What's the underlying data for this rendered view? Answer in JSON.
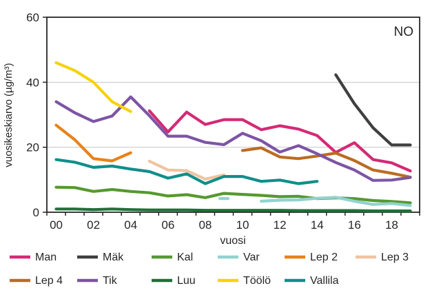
{
  "chart_data": {
    "type": "line",
    "title": "NO",
    "xlabel": "vuosi",
    "ylabel": "vuosikeskiarvo (µg/m³)",
    "x_categories": [
      "00",
      "01",
      "02",
      "03",
      "04",
      "05",
      "06",
      "07",
      "08",
      "09",
      "10",
      "11",
      "12",
      "13",
      "14",
      "15",
      "16",
      "17",
      "18",
      "19"
    ],
    "x_axis_tick_labels": [
      "00",
      "02",
      "04",
      "06",
      "08",
      "10",
      "12",
      "14",
      "16",
      "18"
    ],
    "ylim": [
      0,
      60
    ],
    "yticks": [
      0,
      20,
      40,
      60
    ],
    "gridlines_y": [
      20,
      40
    ],
    "grid": "horizontal-only",
    "legend_position": "bottom",
    "axis_color": "#262626",
    "grid_color": "#c6c6c6",
    "background_color": "#ffffff",
    "series": [
      {
        "name": "Man",
        "color": "#d42a75",
        "values": [
          null,
          null,
          null,
          null,
          null,
          31.2,
          24.7,
          30.8,
          27.0,
          28.5,
          28.5,
          25.4,
          26.6,
          25.6,
          23.6,
          18.4,
          21.4,
          16.2,
          15.2,
          12.7
        ]
      },
      {
        "name": "Mäk",
        "color": "#3f3f3f",
        "values": [
          null,
          null,
          null,
          null,
          null,
          null,
          null,
          null,
          null,
          null,
          null,
          null,
          null,
          null,
          null,
          42.3,
          33.4,
          26.0,
          20.7,
          20.7
        ]
      },
      {
        "name": "Kal",
        "color": "#55992f",
        "values": [
          7.7,
          7.6,
          6.4,
          7.0,
          6.4,
          6.0,
          5.0,
          5.4,
          4.5,
          5.8,
          5.5,
          5.2,
          4.8,
          4.9,
          4.2,
          4.4,
          4.2,
          3.6,
          3.3,
          2.9
        ]
      },
      {
        "name": "Var",
        "color": "#92d2cf",
        "values": [
          null,
          null,
          null,
          null,
          null,
          null,
          null,
          null,
          null,
          4.2,
          null,
          3.4,
          3.7,
          3.8,
          4.3,
          4.6,
          3.4,
          2.4,
          2.7,
          2.1
        ]
      },
      {
        "name": "Lep 2",
        "color": "#e8821a",
        "values": [
          26.8,
          22.3,
          16.5,
          15.8,
          18.3,
          null,
          null,
          null,
          null,
          null,
          null,
          null,
          null,
          null,
          null,
          null,
          null,
          null,
          null,
          null
        ]
      },
      {
        "name": "Lep 3",
        "color": "#f1c3a0",
        "values": [
          null,
          null,
          null,
          null,
          null,
          15.7,
          13.0,
          12.8,
          10.2,
          11.5,
          null,
          null,
          null,
          null,
          null,
          null,
          null,
          null,
          null,
          null
        ]
      },
      {
        "name": "Lep 4",
        "color": "#bd6b21",
        "values": [
          null,
          null,
          null,
          null,
          null,
          null,
          null,
          null,
          null,
          null,
          19.0,
          19.8,
          17.0,
          16.5,
          17.3,
          18.2,
          15.9,
          13.0,
          12.0,
          10.8
        ]
      },
      {
        "name": "Tik",
        "color": "#7d55a4",
        "values": [
          34.0,
          30.6,
          27.9,
          29.6,
          35.5,
          29.7,
          23.4,
          23.4,
          21.5,
          20.8,
          24.3,
          22.0,
          18.5,
          20.5,
          18.0,
          15.3,
          13.0,
          9.8,
          9.9,
          10.7
        ]
      },
      {
        "name": "Luu",
        "color": "#1e7038",
        "values": [
          1.0,
          1.0,
          0.8,
          1.0,
          0.8,
          0.7,
          0.7,
          0.7,
          0.6,
          0.6,
          0.6,
          0.6,
          0.6,
          0.5,
          0.5,
          0.5,
          0.5,
          0.4,
          0.4,
          0.4
        ]
      },
      {
        "name": "Töölö",
        "color": "#f7d20e",
        "values": [
          46.0,
          43.6,
          40.0,
          34.0,
          31.0,
          null,
          null,
          null,
          null,
          null,
          null,
          null,
          null,
          null,
          null,
          null,
          null,
          null,
          null,
          null
        ]
      },
      {
        "name": "Vallila",
        "color": "#108f8a",
        "values": [
          16.2,
          15.4,
          13.8,
          14.2,
          13.3,
          12.5,
          10.5,
          11.8,
          8.8,
          11.0,
          11.0,
          9.5,
          9.9,
          8.8,
          9.5,
          null,
          null,
          null,
          null,
          null
        ]
      }
    ]
  }
}
